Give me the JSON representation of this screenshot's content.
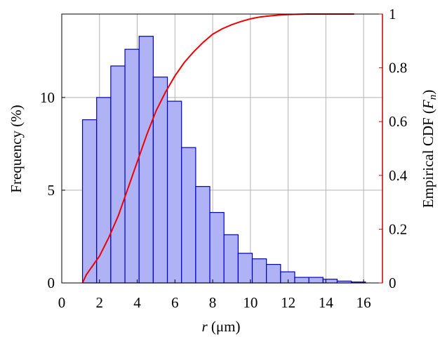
{
  "chart_data": {
    "type": "bar",
    "subtype": "histogram-with-cdf",
    "title": "",
    "xlabel_italic": "r",
    "xlabel_unit": " (μm)",
    "ylabel": "Frequency (%)",
    "y2label_prefix": "Empirical CDF (",
    "y2label_italic": "F",
    "y2label_sub": "n",
    "y2label_suffix": ")",
    "xlim": [
      0,
      17
    ],
    "ylim": [
      0,
      14.5
    ],
    "y2lim": [
      0,
      1
    ],
    "grid": true,
    "x_ticks": [
      0,
      2,
      4,
      6,
      8,
      10,
      12,
      14,
      16
    ],
    "y_ticks": [
      0,
      5,
      10
    ],
    "y2_ticks": [
      0,
      0.2,
      0.4,
      0.6,
      0.8,
      1
    ],
    "bin_width": 0.75,
    "bin_starts": [
      1.1,
      1.85,
      2.6,
      3.35,
      4.1,
      4.85,
      5.6,
      6.35,
      7.1,
      7.85,
      8.6,
      9.35,
      10.1,
      10.85,
      11.6,
      12.35,
      13.1,
      13.85,
      14.6,
      15.35
    ],
    "frequency": [
      8.8,
      10.0,
      11.7,
      12.6,
      13.3,
      11.1,
      9.8,
      7.3,
      5.2,
      3.8,
      2.6,
      1.6,
      1.3,
      1.0,
      0.6,
      0.3,
      0.3,
      0.2,
      0.1,
      0.05
    ],
    "cdf_series": {
      "r": [
        1.1,
        1.3,
        1.6,
        2.0,
        2.5,
        3.0,
        3.5,
        4.0,
        4.5,
        5.0,
        5.5,
        6.0,
        6.5,
        7.0,
        7.5,
        8.0,
        8.5,
        9.0,
        9.5,
        10.0,
        10.5,
        11.0,
        11.5,
        12.0,
        12.5,
        13.0,
        14.0,
        15.5
      ],
      "F": [
        0.0,
        0.03,
        0.06,
        0.1,
        0.17,
        0.25,
        0.35,
        0.45,
        0.55,
        0.64,
        0.71,
        0.77,
        0.82,
        0.86,
        0.895,
        0.925,
        0.945,
        0.96,
        0.972,
        0.982,
        0.989,
        0.993,
        0.996,
        0.998,
        0.999,
        1.0,
        1.0,
        1.0
      ]
    },
    "colors": {
      "bar_fill": "#b0b2f6",
      "bar_stroke": "#0000cc",
      "cdf_line": "#ee0000",
      "right_axis": "#cc0000"
    }
  }
}
